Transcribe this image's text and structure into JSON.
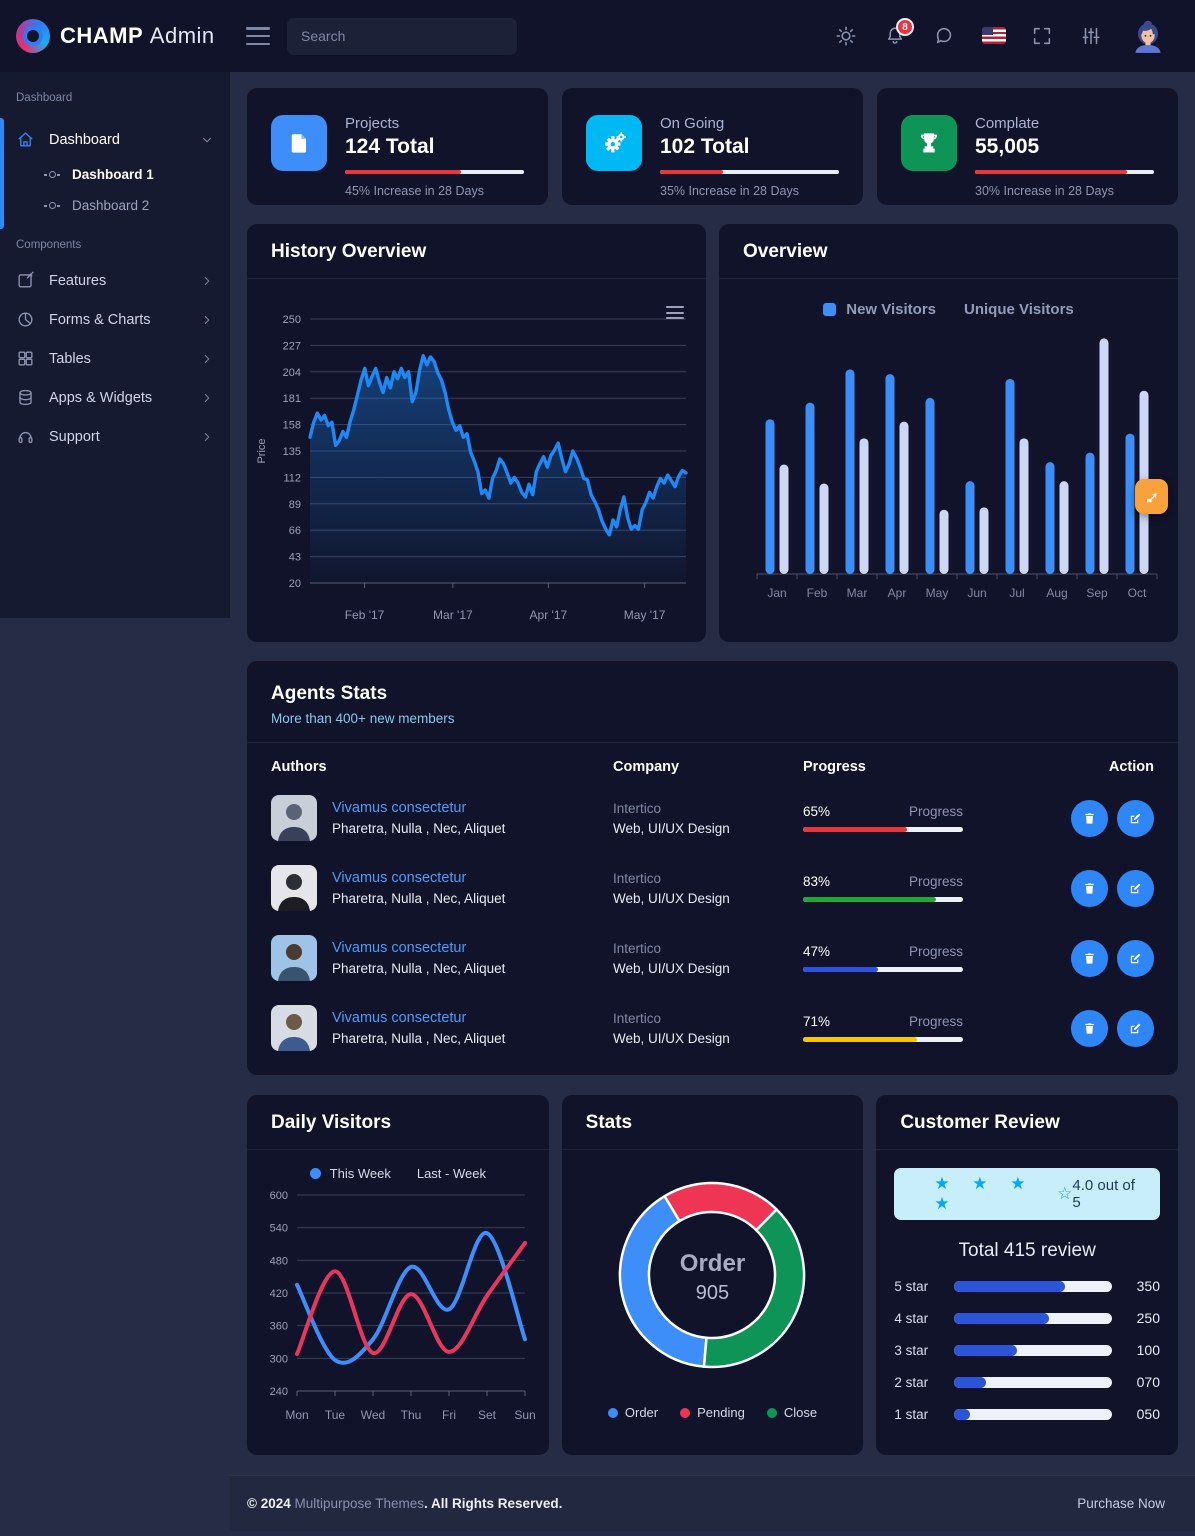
{
  "header": {
    "brand_bold": "CHAMP",
    "brand_light": "Admin",
    "search_placeholder": "Search",
    "notification_count": "8"
  },
  "sidebar": {
    "section_dashboard": "Dashboard",
    "dashboard_label": "Dashboard",
    "dashboard_sub1": "Dashboard 1",
    "dashboard_sub2": "Dashboard 2",
    "section_components": "Components",
    "features": "Features",
    "forms_charts": "Forms & Charts",
    "tables": "Tables",
    "apps_widgets": "Apps & Widgets",
    "support": "Support"
  },
  "stats": {
    "cards": [
      {
        "label": "Projects",
        "value": "124 Total",
        "caption": "45% Increase in 28 Days",
        "pct": 65,
        "icon_color": "#3d8ef8"
      },
      {
        "label": "On Going",
        "value": "102 Total",
        "caption": "35% Increase in 28 Days",
        "pct": 35,
        "icon_color": "#00b8f4"
      },
      {
        "label": "Complate",
        "value": "55,005",
        "caption": "30% Increase in 28 Days",
        "pct": 85,
        "icon_color": "#0d9456"
      }
    ]
  },
  "history": {
    "title": "History Overview",
    "chart": {
      "type": "line",
      "ylabel": "Price",
      "ymin": 20,
      "ymax": 250,
      "yticks": [
        20,
        43,
        66,
        89,
        112,
        135,
        158,
        181,
        204,
        227,
        250
      ],
      "xticks": [
        {
          "label": "Feb '17",
          "pos": 0.145
        },
        {
          "label": "Mar '17",
          "pos": 0.38
        },
        {
          "label": "Apr '17",
          "pos": 0.634
        },
        {
          "label": "May '17",
          "pos": 0.89
        }
      ],
      "series": [
        {
          "name": "Price",
          "color": "#1e88f7",
          "fill": true,
          "values": [
            147,
            160,
            168,
            162,
            166,
            157,
            160,
            140,
            144,
            152,
            147,
            161,
            171,
            184,
            197,
            207,
            192,
            200,
            207,
            195,
            186,
            199,
            190,
            204,
            198,
            207,
            199,
            204,
            178,
            186,
            205,
            218,
            210,
            217,
            213,
            203,
            197,
            186,
            171,
            160,
            153,
            157,
            147,
            150,
            134,
            126,
            117,
            98,
            101,
            94,
            111,
            118,
            128,
            124,
            116,
            107,
            112,
            107,
            99,
            95,
            106,
            97,
            117,
            124,
            130,
            121,
            131,
            136,
            142,
            128,
            117,
            124,
            135,
            129,
            121,
            111,
            110,
            97,
            91,
            84,
            74,
            67,
            62,
            75,
            69,
            84,
            95,
            77,
            67,
            70,
            67,
            84,
            90,
            99,
            94,
            104,
            111,
            107,
            114,
            109,
            104,
            113,
            118,
            116
          ]
        }
      ]
    }
  },
  "overview": {
    "title": "Overview",
    "legend": [
      {
        "label": "New Visitors",
        "color": "#3d8ef8"
      },
      {
        "label": "Unique Visitors",
        "color": "#cdd6f4"
      }
    ],
    "chart": {
      "type": "bar",
      "categories": [
        "Jan",
        "Feb",
        "Mar",
        "Apr",
        "May",
        "Jun",
        "Jul",
        "Aug",
        "Sep",
        "Oct"
      ],
      "series": [
        {
          "name": "New Visitors",
          "color": "#3d8ef8",
          "values": [
            65,
            72,
            86,
            84,
            74,
            39,
            82,
            47,
            51,
            59
          ]
        },
        {
          "name": "Unique Visitors",
          "color": "#cdd6f4",
          "values": [
            46,
            38,
            57,
            64,
            27,
            28,
            57,
            39,
            99,
            77
          ]
        }
      ],
      "ylim": [
        0,
        100
      ]
    }
  },
  "agents": {
    "title": "Agents Stats",
    "subtitle": "More than 400+ new members",
    "headers": {
      "authors": "Authors",
      "company": "Company",
      "progress": "Progress",
      "action": "Action"
    },
    "rows": [
      {
        "name": "Vivamus consectetur",
        "desc": "Pharetra, Nulla , Nec, Aliquet",
        "company": "Intertico",
        "role": "Web, UI/UX Design",
        "pct_label": "65%",
        "progress_word": "Progress",
        "pct": 65,
        "color": "#e8363d",
        "avatar_bg": "#c9cfd9"
      },
      {
        "name": "Vivamus consectetur",
        "desc": "Pharetra, Nulla , Nec, Aliquet",
        "company": "Intertico",
        "role": "Web, UI/UX Design",
        "pct_label": "83%",
        "progress_word": "Progress",
        "pct": 83,
        "color": "#21a737",
        "avatar_bg": "#e6e6ea"
      },
      {
        "name": "Vivamus consectetur",
        "desc": "Pharetra, Nulla , Nec, Aliquet",
        "company": "Intertico",
        "role": "Web, UI/UX Design",
        "pct_label": "47%",
        "progress_word": "Progress",
        "pct": 47,
        "color": "#2b53e0",
        "avatar_bg": "#9ec3e6"
      },
      {
        "name": "Vivamus consectetur",
        "desc": "Pharetra, Nulla , Nec, Aliquet",
        "company": "Intertico",
        "role": "Web, UI/UX Design",
        "pct_label": "71%",
        "progress_word": "Progress",
        "pct": 71,
        "color": "#f7c600",
        "avatar_bg": "#d6dbe4"
      }
    ]
  },
  "daily": {
    "title": "Daily Visitors",
    "legend": [
      {
        "label": "This Week",
        "color": "#3d8ef8"
      },
      {
        "label": "Last - Week",
        "color": "#e8365f"
      }
    ],
    "chart": {
      "type": "line",
      "ymin": 240,
      "ymax": 600,
      "yticks": [
        240,
        300,
        360,
        420,
        480,
        540,
        600
      ],
      "xlabels": [
        "Mon",
        "Tue",
        "Wed",
        "Thu",
        "Fri",
        "Set",
        "Sun"
      ],
      "series": [
        {
          "name": "This Week",
          "color": "#3d8ef8",
          "values": [
            435,
            297,
            335,
            468,
            390,
            530,
            335
          ]
        },
        {
          "name": "Last - Week",
          "color": "#e8365f",
          "values": [
            308,
            460,
            310,
            418,
            312,
            415,
            512
          ]
        }
      ]
    }
  },
  "stats_donut": {
    "title": "Stats",
    "center_title": "Order",
    "center_value": "905",
    "chart": {
      "type": "pie",
      "start_angle": 185,
      "segments": [
        {
          "label": "Order",
          "value": 40,
          "color": "#3d8ef8"
        },
        {
          "label": "Pending",
          "value": 21,
          "color": "#ee3654"
        },
        {
          "label": "Close",
          "value": 39,
          "color": "#0d9456"
        }
      ]
    }
  },
  "review": {
    "title": "Customer Review",
    "stars_filled": "★ ★ ★ ★",
    "star_empty": "☆",
    "score": "4.0 out of 5",
    "total": "Total 415 review",
    "bar_color": "#2b55d8",
    "rows": [
      {
        "label": "5 star",
        "value": "350",
        "pct": 70
      },
      {
        "label": "4 star",
        "value": "250",
        "pct": 60
      },
      {
        "label": "3 star",
        "value": "100",
        "pct": 40
      },
      {
        "label": "2 star",
        "value": "070",
        "pct": 20
      },
      {
        "label": "1 star",
        "value": "050",
        "pct": 10
      }
    ]
  },
  "footer": {
    "copyright_prefix": "© 2024 ",
    "brand": "Multipurpose Themes",
    "suffix": ". All Rights Reserved.",
    "purchase": "Purchase Now"
  }
}
